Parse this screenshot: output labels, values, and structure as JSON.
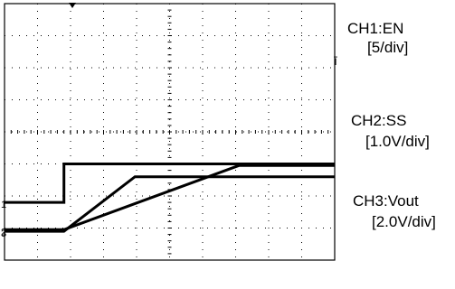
{
  "chart_data": {
    "type": "line",
    "title": "",
    "grid": true,
    "divisions": {
      "x": 10,
      "y": 8
    },
    "trigger_marker": "down-arrow",
    "channels": [
      {
        "name": "CH1:EN",
        "scale": "[5/div]",
        "marker": "1",
        "color": "#000000",
        "points_div": [
          [
            0,
            1.8
          ],
          [
            1.8,
            1.8
          ],
          [
            1.8,
            3.0
          ],
          [
            10,
            3.0
          ]
        ]
      },
      {
        "name": "CH2:SS",
        "scale": "[1.0V/div]",
        "marker": "2",
        "color": "#000000",
        "points_div": [
          [
            0,
            0.95
          ],
          [
            1.8,
            0.95
          ],
          [
            7.1,
            2.95
          ],
          [
            10,
            2.95
          ]
        ]
      },
      {
        "name": "CH3:Vout",
        "scale": "[2.0V/div]",
        "marker": "3",
        "color": "#000000",
        "points_div": [
          [
            0,
            0.9
          ],
          [
            1.8,
            0.9
          ],
          [
            3.95,
            2.6
          ],
          [
            10,
            2.6
          ]
        ]
      }
    ],
    "xlabel": "",
    "ylabel": ""
  }
}
